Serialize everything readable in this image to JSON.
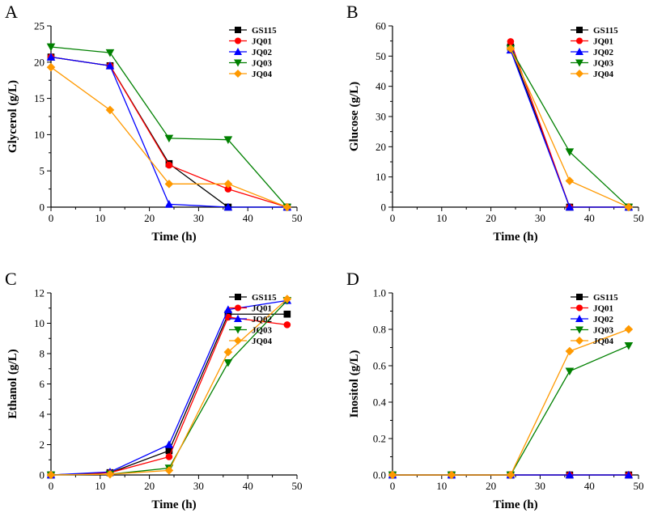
{
  "figure": {
    "series_styles": [
      {
        "name": "GS115",
        "color": "#000000",
        "marker": "square"
      },
      {
        "name": "JQ01",
        "color": "#ff0000",
        "marker": "circle"
      },
      {
        "name": "JQ02",
        "color": "#0000ff",
        "marker": "triangle-up"
      },
      {
        "name": "JQ03",
        "color": "#008000",
        "marker": "triangle-down"
      },
      {
        "name": "JQ04",
        "color": "#ff9900",
        "marker": "diamond"
      }
    ]
  },
  "chart_data": [
    {
      "panel": "A",
      "type": "line",
      "xlabel": "Time (h)",
      "ylabel": "Glycerol (g/L)",
      "xlim": [
        0,
        50
      ],
      "ylim": [
        0,
        25
      ],
      "xticks": [
        "0",
        "10",
        "20",
        "30",
        "40",
        "50"
      ],
      "yticks": [
        "0",
        "5",
        "10",
        "15",
        "20",
        "25"
      ],
      "x": [
        0,
        12,
        24,
        36,
        48
      ],
      "series": [
        {
          "name": "GS115",
          "values": [
            20.7,
            19.5,
            6.0,
            0.0,
            0.0
          ]
        },
        {
          "name": "JQ01",
          "values": [
            20.7,
            19.5,
            5.8,
            2.5,
            0.0
          ]
        },
        {
          "name": "JQ02",
          "values": [
            20.7,
            19.5,
            0.4,
            0.0,
            0.0
          ]
        },
        {
          "name": "JQ03",
          "values": [
            22.1,
            21.3,
            9.5,
            9.3,
            0.0
          ]
        },
        {
          "name": "JQ04",
          "values": [
            19.3,
            13.4,
            3.2,
            3.2,
            0.0
          ]
        }
      ]
    },
    {
      "panel": "B",
      "type": "line",
      "xlabel": "Time (h)",
      "ylabel": "Glucose (g/L)",
      "xlim": [
        0,
        50
      ],
      "ylim": [
        0,
        60
      ],
      "xticks": [
        "0",
        "10",
        "20",
        "30",
        "40",
        "50"
      ],
      "yticks": [
        "0",
        "10",
        "20",
        "30",
        "40",
        "50",
        "60"
      ],
      "x": [
        24,
        36,
        48
      ],
      "series": [
        {
          "name": "GS115",
          "values": [
            53.0,
            0.0,
            0.0
          ]
        },
        {
          "name": "JQ01",
          "values": [
            54.8,
            0.0,
            0.0
          ]
        },
        {
          "name": "JQ02",
          "values": [
            52.0,
            0.0,
            0.0
          ]
        },
        {
          "name": "JQ03",
          "values": [
            52.5,
            18.3,
            0.0
          ]
        },
        {
          "name": "JQ04",
          "values": [
            52.5,
            8.7,
            0.0
          ]
        }
      ]
    },
    {
      "panel": "C",
      "type": "line",
      "xlabel": "Time (h)",
      "ylabel": "Ethanol (g/L)",
      "xlim": [
        0,
        50
      ],
      "ylim": [
        0,
        12
      ],
      "xticks": [
        "0",
        "10",
        "20",
        "30",
        "40",
        "50"
      ],
      "yticks": [
        "0",
        "2",
        "4",
        "6",
        "8",
        "10",
        "12"
      ],
      "x": [
        0,
        12,
        24,
        36,
        48
      ],
      "series": [
        {
          "name": "GS115",
          "values": [
            0.0,
            0.15,
            1.6,
            10.6,
            10.6
          ]
        },
        {
          "name": "JQ01",
          "values": [
            0.0,
            0.15,
            1.2,
            10.4,
            9.9
          ]
        },
        {
          "name": "JQ02",
          "values": [
            0.0,
            0.2,
            2.0,
            10.9,
            11.5
          ]
        },
        {
          "name": "JQ03",
          "values": [
            0.0,
            0.05,
            0.45,
            7.4,
            11.5
          ]
        },
        {
          "name": "JQ04",
          "values": [
            0.0,
            0.05,
            0.3,
            8.1,
            11.6
          ]
        }
      ]
    },
    {
      "panel": "D",
      "type": "line",
      "xlabel": "Time (h)",
      "ylabel": "Inositol (g/L)",
      "xlim": [
        0,
        50
      ],
      "ylim": [
        0,
        1.0
      ],
      "xticks": [
        "0",
        "10",
        "20",
        "30",
        "40",
        "50"
      ],
      "yticks": [
        "0.0",
        "0.2",
        "0.4",
        "0.6",
        "0.8",
        "1.0"
      ],
      "x": [
        0,
        12,
        24,
        36,
        48
      ],
      "series": [
        {
          "name": "GS115",
          "values": [
            0.0,
            0.0,
            0.0,
            0.0,
            0.0
          ]
        },
        {
          "name": "JQ01",
          "values": [
            0.0,
            0.0,
            0.0,
            0.0,
            0.0
          ]
        },
        {
          "name": "JQ02",
          "values": [
            0.0,
            0.0,
            0.0,
            0.0,
            0.0
          ]
        },
        {
          "name": "JQ03",
          "values": [
            0.0,
            0.0,
            0.0,
            0.57,
            0.71
          ]
        },
        {
          "name": "JQ04",
          "values": [
            0.0,
            0.0,
            0.0,
            0.68,
            0.8
          ]
        }
      ]
    }
  ]
}
